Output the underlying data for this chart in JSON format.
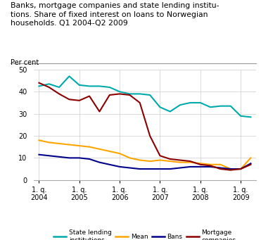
{
  "title": "Banks, mortgage companies and state lending institu-\ntions. Share of fixed interest on loans to Norwegian\nhouseholds. Q1 2004-Q2 2009",
  "ylabel": "Per cent",
  "ylim": [
    0,
    50
  ],
  "yticks": [
    0,
    10,
    20,
    30,
    40,
    50
  ],
  "xtick_labels": [
    "1. q.\n2004",
    "1. q.\n2005",
    "1. q.\n2006",
    "1. q.\n2007",
    "1. q.\n2008",
    "1. q.\n2009"
  ],
  "xtick_positions": [
    0,
    4,
    8,
    12,
    16,
    20
  ],
  "n_points": 22,
  "series": {
    "State lending institutions": {
      "color": "#00AAAA",
      "data": [
        42.5,
        43.5,
        42,
        47,
        43,
        42.5,
        42.5,
        42,
        40,
        39,
        39,
        38.5,
        33,
        31,
        34,
        35,
        35,
        33,
        33.5,
        33.5,
        29,
        28.5
      ]
    },
    "Mean": {
      "color": "#FFA500",
      "data": [
        18,
        17,
        16.5,
        16,
        15.5,
        15,
        14,
        13,
        12,
        10,
        9,
        8.5,
        9,
        8.5,
        8,
        8,
        7.5,
        7,
        7,
        5,
        5,
        10
      ]
    },
    "Bans": {
      "color": "#00008B",
      "data": [
        11.5,
        11,
        10.5,
        10,
        10,
        9.5,
        8,
        7,
        6,
        5.5,
        5,
        5,
        5,
        5,
        5.5,
        6,
        6,
        6,
        5.5,
        5,
        5,
        7.5
      ]
    },
    "Mortgage companies": {
      "color": "#8B0000",
      "data": [
        44,
        42,
        39,
        36.5,
        36,
        38,
        31,
        38.5,
        39,
        38.5,
        35,
        20,
        11,
        9.5,
        9,
        8.5,
        7,
        6.5,
        5,
        4.5,
        5,
        7
      ]
    }
  },
  "legend_labels": [
    "State lending\ninstitutions",
    "Mean",
    "Bans",
    "Mortgage\ncompanies"
  ],
  "legend_colors": [
    "#00AAAA",
    "#FFA500",
    "#00008B",
    "#8B0000"
  ],
  "background_color": "#ffffff",
  "grid_color": "#cccccc"
}
